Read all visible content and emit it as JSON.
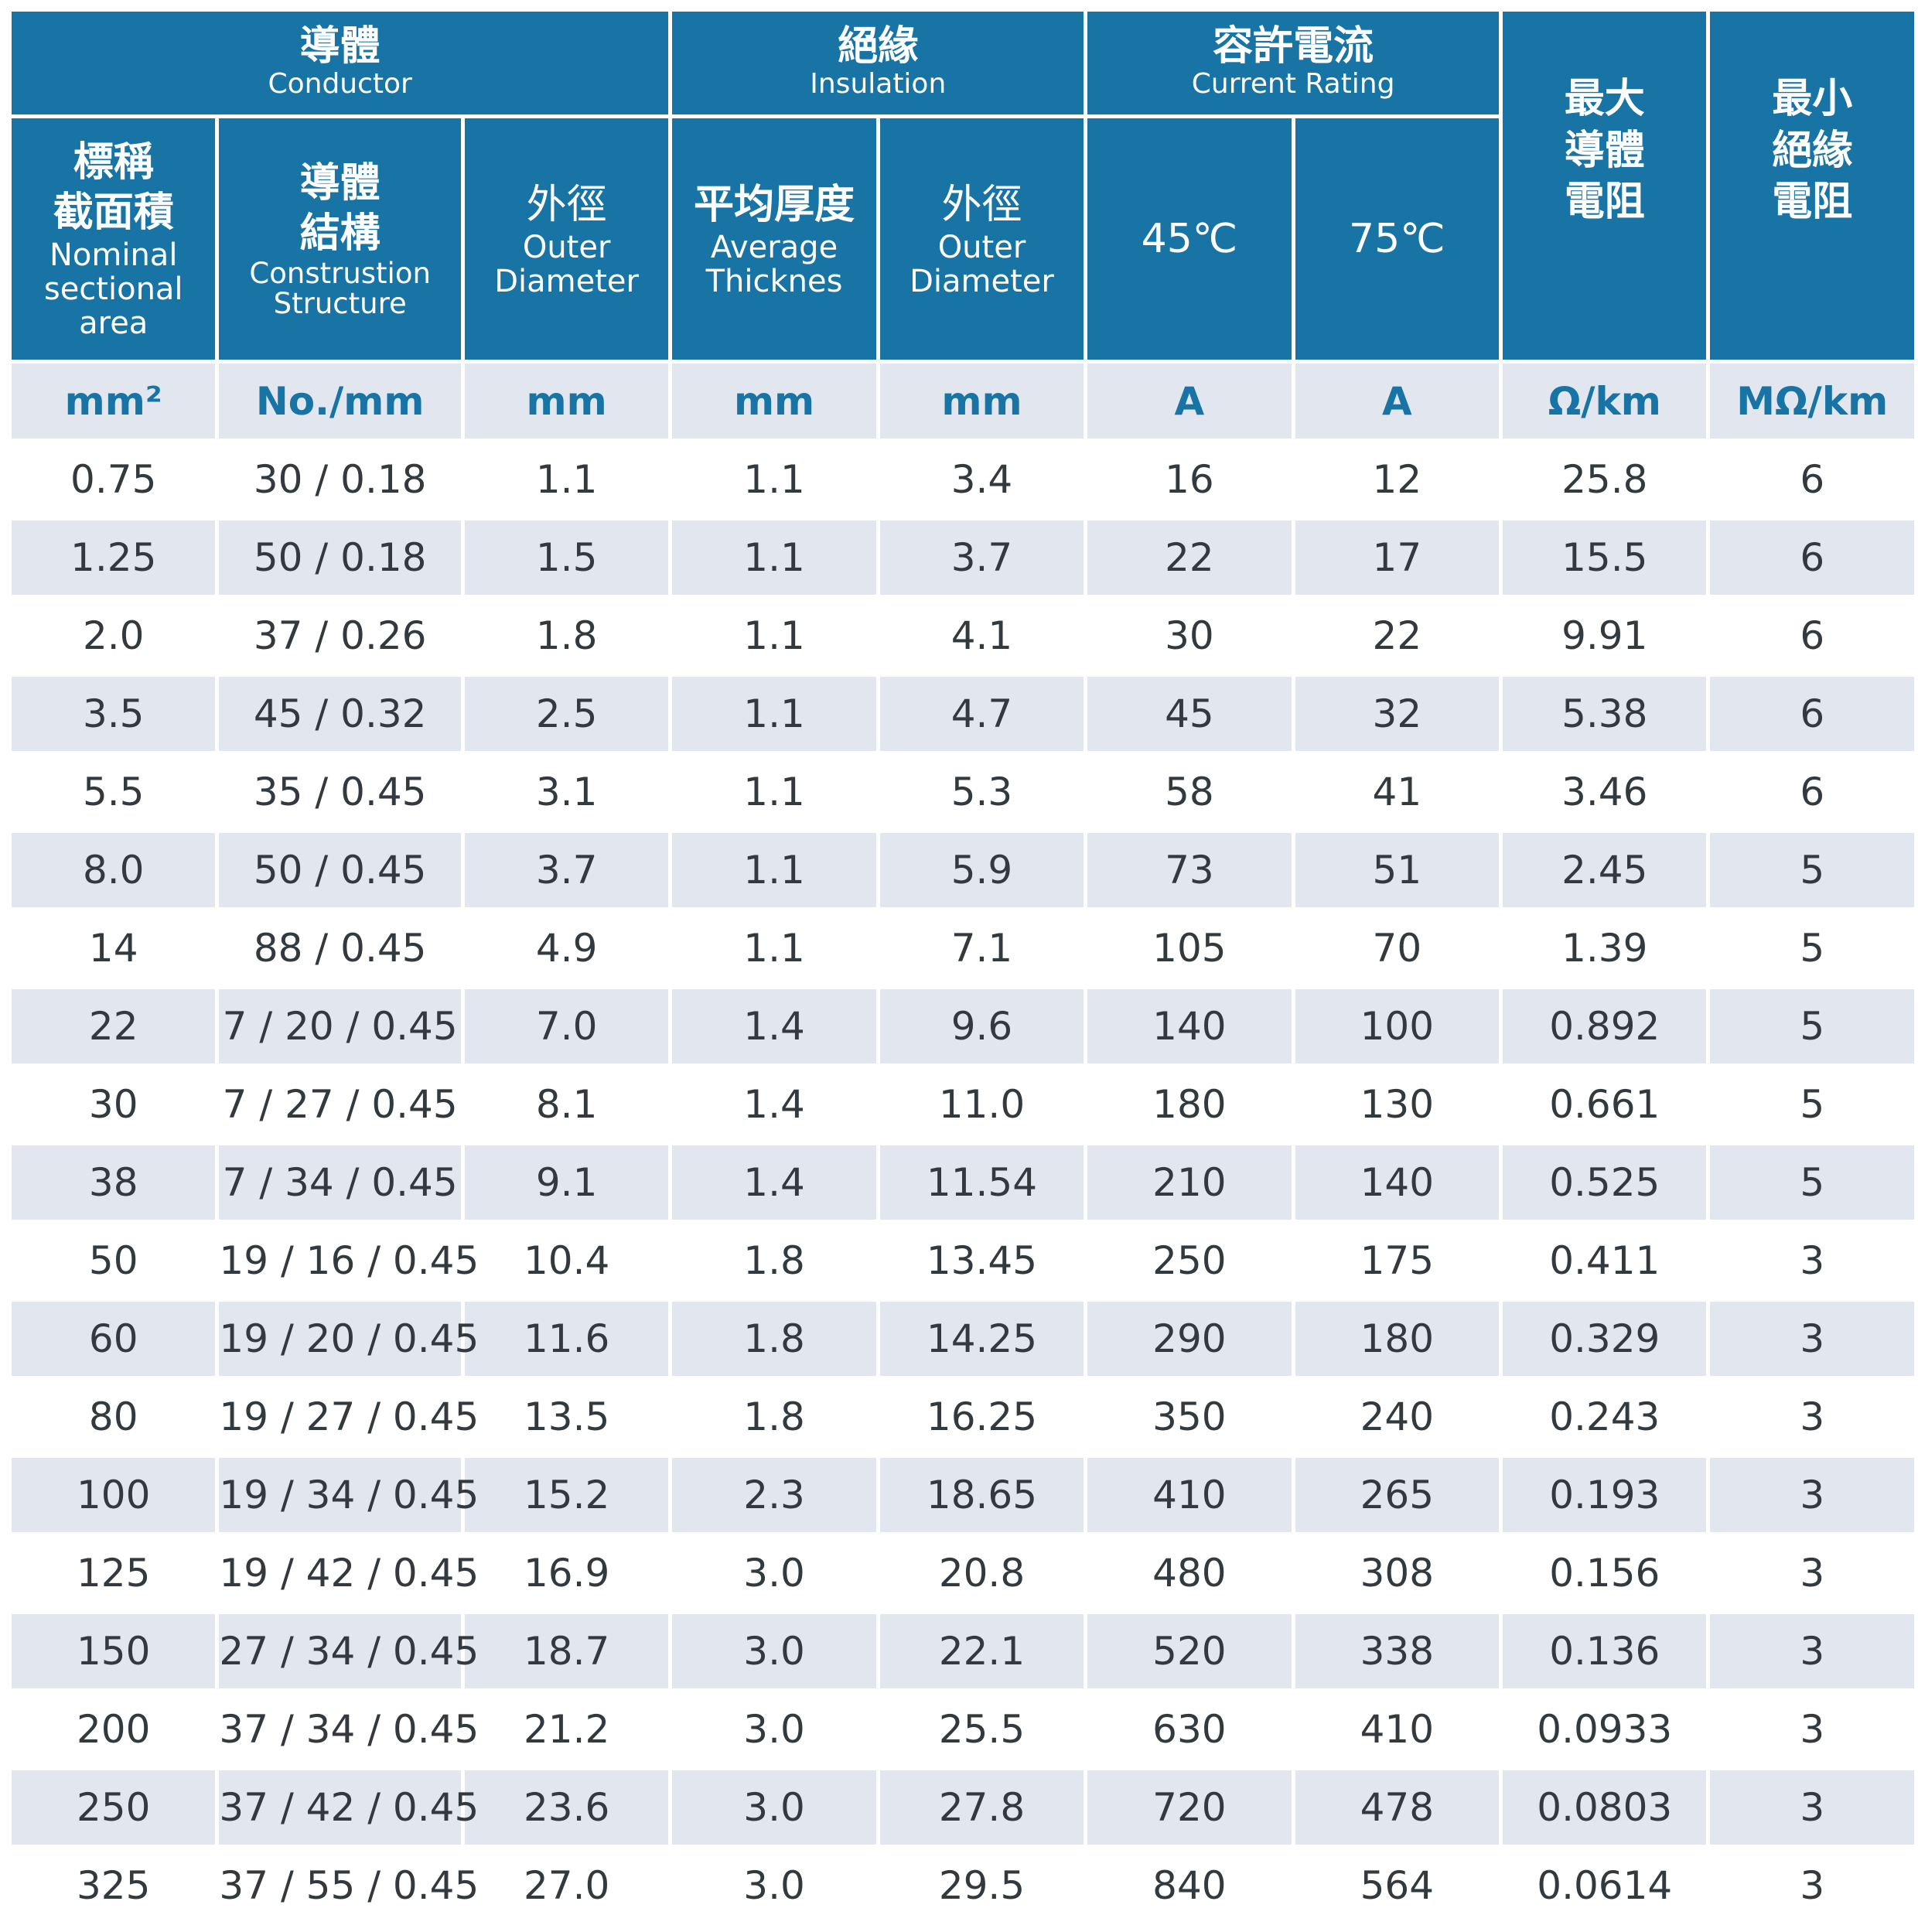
{
  "header": {
    "conductor": {
      "zh": "導體",
      "en": "Conductor"
    },
    "insulation": {
      "zh": "絕緣",
      "en": "Insulation"
    },
    "current_rating": {
      "zh": "容許電流",
      "en": "Current Rating"
    },
    "max_resistance": {
      "zh1": "最大",
      "zh2": "導體",
      "zh3": "電阻"
    },
    "min_insulation": {
      "zh1": "最小",
      "zh2": "絕緣",
      "zh3": "電阻"
    },
    "nominal_area": {
      "zh1": "標稱",
      "zh2": "截面積",
      "en1": "Nominal",
      "en2": "sectional",
      "en3": "area"
    },
    "construction": {
      "zh1": "導體",
      "zh2": "結構",
      "en1": "Construstion",
      "en2": "Structure"
    },
    "cond_outer_diameter": {
      "zh": "外徑",
      "en1": "Outer",
      "en2": "Diameter"
    },
    "avg_thickness": {
      "zh": "平均厚度",
      "en1": "Average",
      "en2": "Thicknes"
    },
    "ins_outer_diameter": {
      "zh": "外徑",
      "en1": "Outer",
      "en2": "Diameter"
    },
    "temp_45": "45℃",
    "temp_75": "75℃"
  },
  "units": [
    "mm²",
    "No./mm",
    "mm",
    "mm",
    "mm",
    "A",
    "A",
    "Ω/km",
    "MΩ/km"
  ],
  "rows": [
    [
      "0.75",
      "30 / 0.18",
      "1.1",
      "1.1",
      "3.4",
      "16",
      "12",
      "25.8",
      "6"
    ],
    [
      "1.25",
      "50 / 0.18",
      "1.5",
      "1.1",
      "3.7",
      "22",
      "17",
      "15.5",
      "6"
    ],
    [
      "2.0",
      "37 / 0.26",
      "1.8",
      "1.1",
      "4.1",
      "30",
      "22",
      "9.91",
      "6"
    ],
    [
      "3.5",
      "45 / 0.32",
      "2.5",
      "1.1",
      "4.7",
      "45",
      "32",
      "5.38",
      "6"
    ],
    [
      "5.5",
      "35 / 0.45",
      "3.1",
      "1.1",
      "5.3",
      "58",
      "41",
      "3.46",
      "6"
    ],
    [
      "8.0",
      "50 / 0.45",
      "3.7",
      "1.1",
      "5.9",
      "73",
      "51",
      "2.45",
      "5"
    ],
    [
      "14",
      "88 / 0.45",
      "4.9",
      "1.1",
      "7.1",
      "105",
      "70",
      "1.39",
      "5"
    ],
    [
      "22",
      "7 / 20 / 0.45",
      "7.0",
      "1.4",
      "9.6",
      "140",
      "100",
      "0.892",
      "5"
    ],
    [
      "30",
      "7 / 27 / 0.45",
      "8.1",
      "1.4",
      "11.0",
      "180",
      "130",
      "0.661",
      "5"
    ],
    [
      "38",
      "7 / 34 / 0.45",
      "9.1",
      "1.4",
      "11.54",
      "210",
      "140",
      "0.525",
      "5"
    ],
    [
      "50",
      "19 / 16 / 0.45",
      "10.4",
      "1.8",
      "13.45",
      "250",
      "175",
      "0.411",
      "3"
    ],
    [
      "60",
      "19 / 20 / 0.45",
      "11.6",
      "1.8",
      "14.25",
      "290",
      "180",
      "0.329",
      "3"
    ],
    [
      "80",
      "19 / 27 / 0.45",
      "13.5",
      "1.8",
      "16.25",
      "350",
      "240",
      "0.243",
      "3"
    ],
    [
      "100",
      "19 / 34 / 0.45",
      "15.2",
      "2.3",
      "18.65",
      "410",
      "265",
      "0.193",
      "3"
    ],
    [
      "125",
      "19 / 42 / 0.45",
      "16.9",
      "3.0",
      "20.8",
      "480",
      "308",
      "0.156",
      "3"
    ],
    [
      "150",
      "27 / 34 / 0.45",
      "18.7",
      "3.0",
      "22.1",
      "520",
      "338",
      "0.136",
      "3"
    ],
    [
      "200",
      "37 / 34 / 0.45",
      "21.2",
      "3.0",
      "25.5",
      "630",
      "410",
      "0.0933",
      "3"
    ],
    [
      "250",
      "37 / 42 / 0.45",
      "23.6",
      "3.0",
      "27.8",
      "720",
      "478",
      "0.0803",
      "3"
    ],
    [
      "325",
      "37 / 55 / 0.45",
      "27.0",
      "3.0",
      "29.5",
      "840",
      "564",
      "0.0614",
      "3"
    ]
  ]
}
